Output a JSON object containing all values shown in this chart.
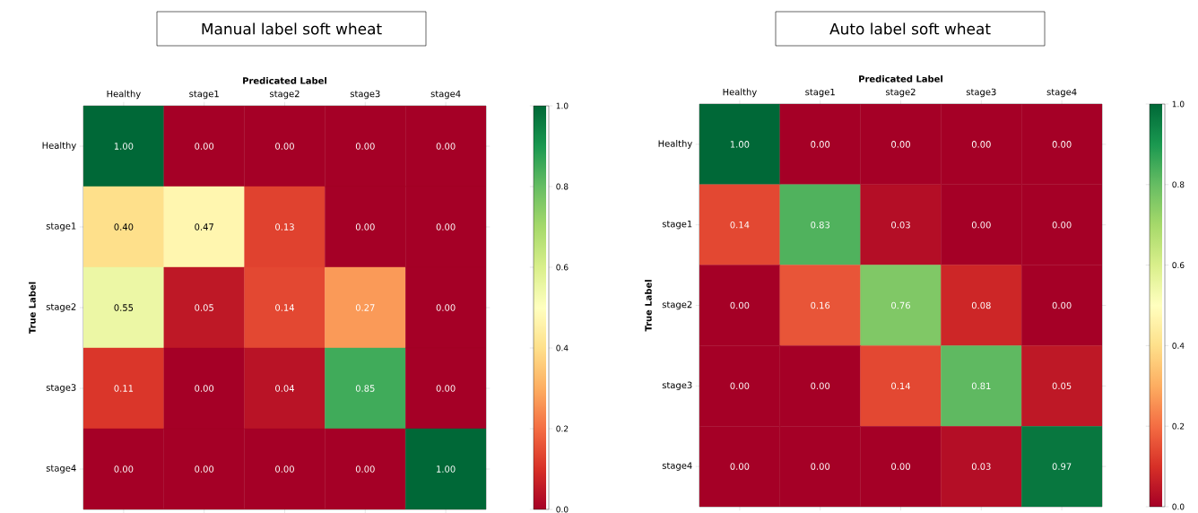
{
  "chart_data": [
    {
      "type": "heatmap",
      "title": "Manual label soft wheat",
      "xlabel": "Predicated Label",
      "ylabel": "True Label",
      "categories": [
        "Healthy",
        "stage1",
        "stage2",
        "stage3",
        "stage4"
      ],
      "y_categories": [
        "Healthy",
        "stage1",
        "stage2",
        "stage3",
        "stage4"
      ],
      "cells": [
        [
          1.0,
          0.0,
          0.0,
          0.0,
          0.0
        ],
        [
          0.4,
          0.47,
          0.13,
          0.0,
          0.0
        ],
        [
          0.55,
          0.05,
          0.14,
          0.27,
          0.0
        ],
        [
          0.11,
          0.0,
          0.04,
          0.85,
          0.0
        ],
        [
          0.0,
          0.0,
          0.0,
          0.0,
          1.0
        ]
      ],
      "cell_labels": [
        [
          "1.00",
          "0.00",
          "0.00",
          "0.00",
          "0.00"
        ],
        [
          "0.40",
          "0.47",
          "0.13",
          "0.00",
          "0.00"
        ],
        [
          "0.55",
          "0.05",
          "0.14",
          "0.27",
          "0.00"
        ],
        [
          "0.11",
          "0.00",
          "0.04",
          "0.85",
          "0.00"
        ],
        [
          "0.00",
          "0.00",
          "0.00",
          "0.00",
          "1.00"
        ]
      ],
      "clim": [
        0,
        1
      ],
      "cticks": [
        {
          "value": 0,
          "label": "0.0"
        },
        {
          "value": 0.2,
          "label": "0.2"
        },
        {
          "value": 0.4,
          "label": "0.4"
        },
        {
          "value": 0.6,
          "label": "0.6"
        },
        {
          "value": 0.8,
          "label": "0.8"
        },
        {
          "value": 1,
          "label": "1.0"
        }
      ]
    },
    {
      "type": "heatmap",
      "title": "Auto label soft wheat",
      "xlabel": "Predicated Label",
      "ylabel": "True Label",
      "categories": [
        "Healthy",
        "stage1",
        "stage2",
        "stage3",
        "stage4"
      ],
      "y_categories": [
        "Healthy",
        "stage1",
        "stage2",
        "stage3",
        "stage4"
      ],
      "cells": [
        [
          1.0,
          0.0,
          0.0,
          0.0,
          0.0
        ],
        [
          0.14,
          0.83,
          0.03,
          0.0,
          0.0
        ],
        [
          0.0,
          0.16,
          0.76,
          0.08,
          0.0
        ],
        [
          0.0,
          0.0,
          0.14,
          0.81,
          0.05
        ],
        [
          0.0,
          0.0,
          0.0,
          0.03,
          0.97
        ]
      ],
      "cell_labels": [
        [
          "1.00",
          "0.00",
          "0.00",
          "0.00",
          "0.00"
        ],
        [
          "0.14",
          "0.83",
          "0.03",
          "0.00",
          "0.00"
        ],
        [
          "0.00",
          "0.16",
          "0.76",
          "0.08",
          "0.00"
        ],
        [
          "0.00",
          "0.00",
          "0.14",
          "0.81",
          "0.05"
        ],
        [
          "0.00",
          "0.00",
          "0.00",
          "0.03",
          "0.97"
        ]
      ],
      "clim": [
        0,
        1
      ],
      "cticks": [
        {
          "value": 0,
          "label": "0.0"
        },
        {
          "value": 0.2,
          "label": "0.2"
        },
        {
          "value": 0.4,
          "label": "0.4"
        },
        {
          "value": 0.6,
          "label": "0.6"
        },
        {
          "value": 0.8,
          "label": "0.8"
        },
        {
          "value": 1,
          "label": "1.0"
        }
      ]
    }
  ]
}
